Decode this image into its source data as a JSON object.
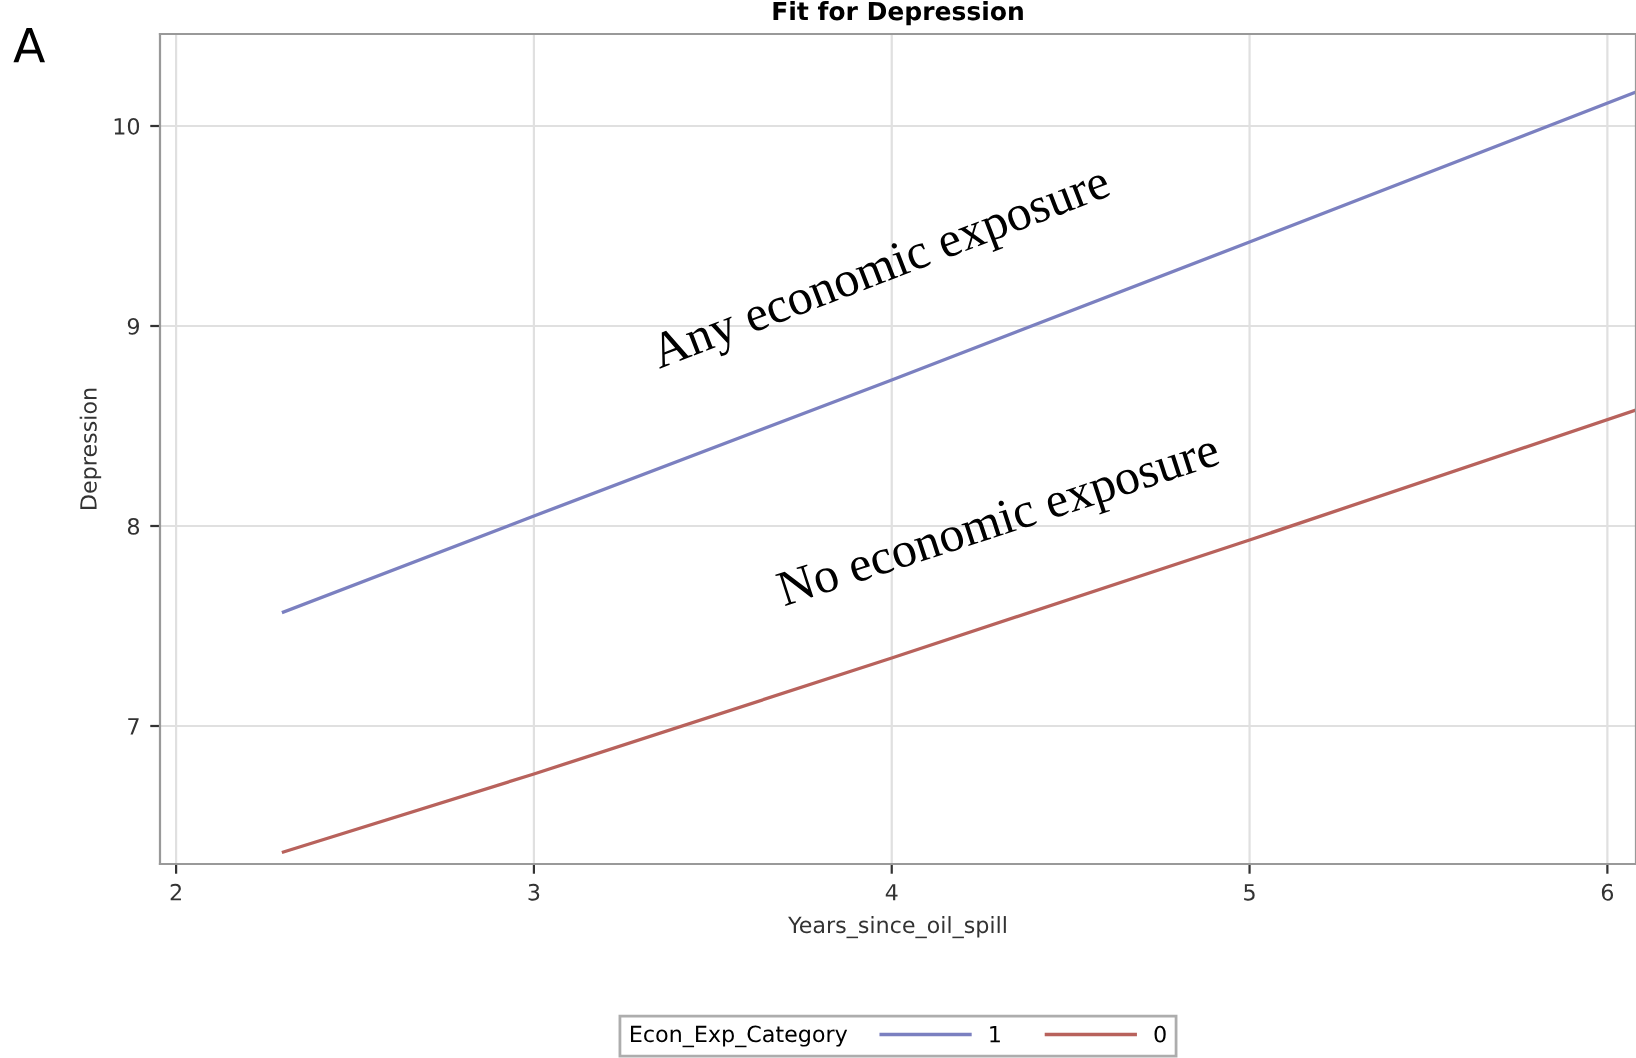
{
  "chart_data": {
    "type": "line",
    "title": "Fit for Depression",
    "xlabel": "Years_since_oil_spill",
    "ylabel": "Depression",
    "legend_title": "Econ_Exp_Category",
    "series": [
      {
        "name": "1",
        "color": "#7b80c0",
        "x": [
          2.3,
          3,
          4,
          5,
          6.08
        ],
        "values": [
          7.57,
          8.05,
          8.73,
          9.42,
          10.17
        ]
      },
      {
        "name": "0",
        "color": "#b8625c",
        "x": [
          2.3,
          3,
          4,
          5,
          6.08
        ],
        "values": [
          6.37,
          6.76,
          7.34,
          7.93,
          8.58
        ]
      }
    ],
    "annotations": [
      "A",
      "Any economic exposure",
      "No economic exposure"
    ],
    "xlim": [
      1.955,
      6.08
    ],
    "ylim": [
      6.31,
      10.46
    ],
    "xticks": [
      2,
      3,
      4,
      5,
      6
    ],
    "yticks": [
      7,
      8,
      9,
      10
    ],
    "grid": true,
    "legend": "bottom",
    "marker": "none",
    "line_style": "solid"
  }
}
